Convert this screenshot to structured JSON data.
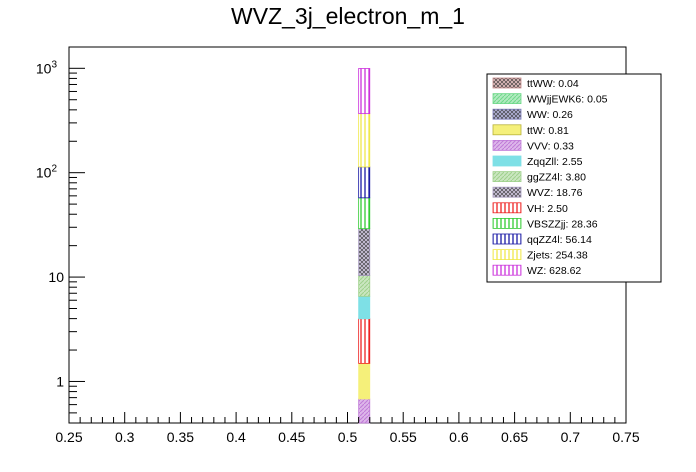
{
  "chart_data": {
    "type": "bar",
    "stacked": true,
    "title": "WVZ_3j_electron_m_1",
    "xlabel": "",
    "ylabel": "",
    "xlim": [
      0.25,
      0.75
    ],
    "y_scale": "log",
    "ylim": [
      0.4,
      1600
    ],
    "x_ticks": [
      "0.25",
      "0.3",
      "0.35",
      "0.4",
      "0.45",
      "0.5",
      "0.55",
      "0.6",
      "0.65",
      "0.7",
      "0.75"
    ],
    "y_ticks": [
      {
        "value": 1,
        "base": "1",
        "exp": ""
      },
      {
        "value": 10,
        "base": "10",
        "exp": ""
      },
      {
        "value": 100,
        "base": "10",
        "exp": "2"
      },
      {
        "value": 1000,
        "base": "10",
        "exp": "3"
      }
    ],
    "bin": [
      0.51,
      0.52
    ],
    "legend_position": "top-right",
    "series": [
      {
        "name": "ttWW",
        "label": "ttWW: 0.04",
        "value": 0.04,
        "color": "#c48a8a",
        "pattern": "crosshatch"
      },
      {
        "name": "WWjjEWK6",
        "label": "WWjjEWK6: 0.05",
        "value": 0.05,
        "color": "#6fd98a",
        "pattern": "hatch"
      },
      {
        "name": "WW",
        "label": "WW: 0.26",
        "value": 0.26,
        "color": "#7b7bb8",
        "pattern": "crosshatch"
      },
      {
        "name": "ttW",
        "label": "ttW: 0.81",
        "value": 0.81,
        "color": "#f5f07a",
        "pattern": "solid"
      },
      {
        "name": "VVV",
        "label": "VVV: 0.33",
        "value": 0.33,
        "color": "#c07ad8",
        "pattern": "hatch"
      },
      {
        "name": "ZqqZll",
        "label": "ZqqZll: 2.55",
        "value": 2.55,
        "color": "#7ee0e6",
        "pattern": "solid"
      },
      {
        "name": "ggZZ4l",
        "label": "ggZZ4l: 3.80",
        "value": 3.8,
        "color": "#9fd18c",
        "pattern": "hatch"
      },
      {
        "name": "WVZ",
        "label": "WVZ: 18.76",
        "value": 18.76,
        "color": "#a69bbf",
        "pattern": "crosshatch"
      },
      {
        "name": "VH",
        "label": "VH: 2.50",
        "value": 2.5,
        "color": "#ee2222",
        "pattern": "vlines"
      },
      {
        "name": "VBSZZjj",
        "label": "VBSZZjj: 28.36",
        "value": 28.36,
        "color": "#33cc33",
        "pattern": "vlines"
      },
      {
        "name": "qqZZ4l",
        "label": "qqZZ4l: 56.14",
        "value": 56.14,
        "color": "#1a1aa6",
        "pattern": "vlines"
      },
      {
        "name": "Zjets",
        "label": "Zjets: 254.38",
        "value": 254.38,
        "color": "#f0e84a",
        "pattern": "vlines"
      },
      {
        "name": "WZ",
        "label": "WZ: 628.62",
        "value": 628.62,
        "color": "#cc33dd",
        "pattern": "vlines"
      }
    ]
  }
}
